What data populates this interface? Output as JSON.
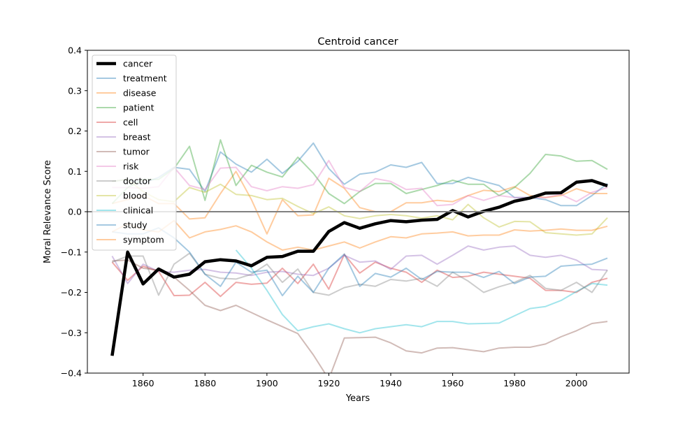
{
  "chart_data": {
    "type": "line",
    "title": "Centroid cancer",
    "xlabel": "Years",
    "ylabel": "Moral Relevance Score",
    "xlim": [
      1842,
      2017
    ],
    "ylim": [
      -0.4,
      0.4
    ],
    "xticks": [
      1860,
      1880,
      1900,
      1920,
      1940,
      1960,
      1980,
      2000
    ],
    "yticks": [
      -0.4,
      -0.3,
      -0.2,
      -0.1,
      0.0,
      0.1,
      0.2,
      0.3,
      0.4
    ],
    "ytick_labels": [
      "−0.4",
      "−0.3",
      "−0.2",
      "−0.1",
      "0.0",
      "0.1",
      "0.2",
      "0.3",
      "0.4"
    ],
    "reference_line": 0.0,
    "legend_position": "upper-left",
    "grid": false,
    "series": [
      {
        "name": "cancer",
        "color": "#000000",
        "emphasis": true,
        "x": [
          1850,
          1855,
          1860,
          1865,
          1870,
          1875,
          1880,
          1885,
          1890,
          1895,
          1900,
          1905,
          1910,
          1915,
          1920,
          1925,
          1930,
          1935,
          1940,
          1945,
          1950,
          1955,
          1960,
          1965,
          1970,
          1975,
          1980,
          1985,
          1990,
          1995,
          2000,
          2005,
          2010
        ],
        "y": [
          -0.357,
          -0.1,
          -0.179,
          -0.142,
          -0.162,
          -0.155,
          -0.124,
          -0.119,
          -0.122,
          -0.134,
          -0.113,
          -0.111,
          -0.098,
          -0.098,
          -0.049,
          -0.027,
          -0.041,
          -0.03,
          -0.022,
          -0.025,
          -0.021,
          -0.019,
          0.003,
          -0.013,
          0.001,
          0.011,
          0.026,
          0.034,
          0.046,
          0.047,
          0.073,
          0.077,
          0.064
        ]
      },
      {
        "name": "treatment",
        "color": "#1f77b4",
        "x": [
          1850,
          1855,
          1860,
          1865,
          1870,
          1875,
          1880,
          1885,
          1890,
          1895,
          1900,
          1905,
          1910,
          1915,
          1920,
          1925,
          1930,
          1935,
          1940,
          1945,
          1950,
          1955,
          1960,
          1965,
          1970,
          1975,
          1980,
          1985,
          1990,
          1995,
          2000,
          2005,
          2010
        ],
        "y": [
          0.075,
          0.08,
          0.07,
          0.085,
          0.11,
          0.105,
          0.05,
          0.148,
          0.118,
          0.098,
          0.13,
          0.095,
          0.125,
          0.17,
          0.107,
          0.068,
          0.093,
          0.098,
          0.116,
          0.11,
          0.122,
          0.07,
          0.07,
          0.085,
          0.075,
          0.065,
          0.035,
          0.035,
          0.03,
          0.015,
          0.015,
          0.04,
          0.07
        ]
      },
      {
        "name": "disease",
        "color": "#ff7f0e",
        "x": [
          1850,
          1855,
          1860,
          1865,
          1870,
          1875,
          1880,
          1885,
          1890,
          1895,
          1900,
          1905,
          1910,
          1915,
          1920,
          1925,
          1930,
          1935,
          1940,
          1945,
          1950,
          1955,
          1960,
          1965,
          1970,
          1975,
          1980,
          1985,
          1990,
          1995,
          2000,
          2005,
          2010
        ],
        "y": [
          0.02,
          0.03,
          0.04,
          0.02,
          0.02,
          -0.018,
          -0.015,
          0.045,
          0.1,
          0.03,
          -0.055,
          0.03,
          -0.01,
          -0.008,
          0.083,
          0.058,
          0.01,
          0.0,
          0.0,
          0.022,
          0.022,
          0.028,
          0.025,
          0.04,
          0.053,
          0.05,
          0.062,
          0.04,
          0.035,
          0.04,
          0.057,
          0.045,
          0.045
        ]
      },
      {
        "name": "patient",
        "color": "#2ca02c",
        "x": [
          1850,
          1855,
          1860,
          1865,
          1870,
          1875,
          1880,
          1885,
          1890,
          1895,
          1900,
          1905,
          1910,
          1915,
          1920,
          1925,
          1930,
          1935,
          1940,
          1945,
          1950,
          1955,
          1960,
          1965,
          1970,
          1975,
          1980,
          1985,
          1990,
          1995,
          2000,
          2005,
          2010
        ],
        "y": [
          0.02,
          0.06,
          0.08,
          0.08,
          0.107,
          0.162,
          0.028,
          0.178,
          0.065,
          0.115,
          0.098,
          0.086,
          0.135,
          0.095,
          0.045,
          0.02,
          0.05,
          0.07,
          0.07,
          0.045,
          0.055,
          0.065,
          0.078,
          0.068,
          0.068,
          0.04,
          0.06,
          0.095,
          0.142,
          0.138,
          0.125,
          0.127,
          0.105
        ]
      },
      {
        "name": "cell",
        "color": "#d62728",
        "x": [
          1850,
          1855,
          1860,
          1865,
          1870,
          1875,
          1880,
          1885,
          1890,
          1895,
          1900,
          1905,
          1910,
          1915,
          1920,
          1925,
          1930,
          1935,
          1940,
          1945,
          1950,
          1955,
          1960,
          1965,
          1970,
          1975,
          1980,
          1985,
          1990,
          1995,
          2000,
          2005,
          2010
        ],
        "y": [
          -0.125,
          -0.17,
          -0.135,
          -0.148,
          -0.208,
          -0.207,
          -0.175,
          -0.21,
          -0.175,
          -0.18,
          -0.177,
          -0.14,
          -0.178,
          -0.13,
          -0.192,
          -0.106,
          -0.152,
          -0.125,
          -0.14,
          -0.15,
          -0.175,
          -0.145,
          -0.163,
          -0.16,
          -0.15,
          -0.155,
          -0.16,
          -0.165,
          -0.195,
          -0.195,
          -0.2,
          -0.175,
          -0.165
        ]
      },
      {
        "name": "breast",
        "color": "#9467bd",
        "x": [
          1850,
          1855,
          1860,
          1865,
          1870,
          1875,
          1880,
          1885,
          1890,
          1895,
          1900,
          1905,
          1910,
          1915,
          1920,
          1925,
          1930,
          1935,
          1940,
          1945,
          1950,
          1955,
          1960,
          1965,
          1970,
          1975,
          1980,
          1985,
          1990,
          1995,
          2000,
          2005,
          2010
        ],
        "y": [
          -0.11,
          -0.178,
          -0.13,
          -0.148,
          -0.15,
          -0.145,
          -0.143,
          -0.15,
          -0.152,
          -0.158,
          -0.15,
          -0.148,
          -0.155,
          -0.158,
          -0.14,
          -0.108,
          -0.125,
          -0.122,
          -0.143,
          -0.11,
          -0.108,
          -0.13,
          -0.108,
          -0.085,
          -0.095,
          -0.088,
          -0.085,
          -0.108,
          -0.113,
          -0.108,
          -0.12,
          -0.143,
          -0.145
        ]
      },
      {
        "name": "tumor",
        "color": "#8c564b",
        "x": [
          1850,
          1855,
          1860,
          1865,
          1870,
          1875,
          1880,
          1885,
          1890,
          1895,
          1900,
          1905,
          1910,
          1915,
          1920,
          1925,
          1930,
          1935,
          1940,
          1945,
          1950,
          1955,
          1960,
          1965,
          1970,
          1975,
          1980,
          1985,
          1990,
          1995,
          2000,
          2005,
          2010
        ],
        "y": [
          -0.122,
          -0.12,
          -0.14,
          -0.145,
          -0.162,
          -0.195,
          -0.232,
          -0.245,
          -0.232,
          -0.25,
          -0.268,
          -0.285,
          -0.302,
          -0.355,
          -0.415,
          -0.313,
          -0.312,
          -0.311,
          -0.325,
          -0.345,
          -0.35,
          -0.338,
          -0.337,
          -0.342,
          -0.347,
          -0.338,
          -0.336,
          -0.336,
          -0.328,
          -0.31,
          -0.295,
          -0.277,
          -0.272
        ]
      },
      {
        "name": "risk",
        "color": "#e377c2",
        "x": [
          1850,
          1855,
          1860,
          1865,
          1870,
          1875,
          1880,
          1885,
          1890,
          1895,
          1900,
          1905,
          1910,
          1915,
          1920,
          1925,
          1930,
          1935,
          1940,
          1945,
          1950,
          1955,
          1960,
          1965,
          1970,
          1975,
          1980,
          1985,
          1990,
          1995,
          2000,
          2005,
          2010
        ],
        "y": [
          0.06,
          0.06,
          0.058,
          0.062,
          0.11,
          0.065,
          0.055,
          0.108,
          0.11,
          0.062,
          0.052,
          0.062,
          0.058,
          0.067,
          0.127,
          0.06,
          0.05,
          0.082,
          0.075,
          0.055,
          0.058,
          0.015,
          0.018,
          0.04,
          0.028,
          0.04,
          0.035,
          0.035,
          0.035,
          0.043,
          0.025,
          0.048,
          0.06
        ]
      },
      {
        "name": "doctor",
        "color": "#7f7f7f",
        "x": [
          1850,
          1855,
          1860,
          1865,
          1870,
          1875,
          1880,
          1885,
          1890,
          1895,
          1900,
          1905,
          1910,
          1915,
          1920,
          1925,
          1930,
          1935,
          1940,
          1945,
          1950,
          1955,
          1960,
          1965,
          1970,
          1975,
          1980,
          1985,
          1990,
          1995,
          2000,
          2005,
          2010
        ],
        "y": [
          -0.125,
          -0.11,
          -0.11,
          -0.207,
          -0.13,
          -0.103,
          -0.155,
          -0.165,
          -0.167,
          -0.155,
          -0.13,
          -0.175,
          -0.142,
          -0.2,
          -0.207,
          -0.188,
          -0.18,
          -0.185,
          -0.168,
          -0.172,
          -0.165,
          -0.185,
          -0.15,
          -0.172,
          -0.2,
          -0.186,
          -0.175,
          -0.158,
          -0.19,
          -0.195,
          -0.175,
          -0.2,
          -0.145
        ]
      },
      {
        "name": "blood",
        "color": "#bcbd22",
        "x": [
          1850,
          1855,
          1860,
          1865,
          1870,
          1875,
          1880,
          1885,
          1890,
          1895,
          1900,
          1905,
          1910,
          1915,
          1920,
          1925,
          1930,
          1935,
          1940,
          1945,
          1950,
          1955,
          1960,
          1965,
          1970,
          1975,
          1980,
          1985,
          1990,
          1995,
          2000,
          2005,
          2010
        ],
        "y": [
          0.075,
          0.08,
          0.05,
          0.03,
          0.025,
          0.06,
          0.048,
          0.068,
          0.043,
          0.04,
          0.03,
          0.033,
          0.013,
          -0.005,
          0.012,
          -0.01,
          -0.017,
          -0.01,
          -0.007,
          -0.01,
          -0.016,
          -0.01,
          -0.02,
          0.018,
          -0.015,
          -0.038,
          -0.024,
          -0.025,
          -0.052,
          -0.055,
          -0.058,
          -0.055,
          -0.015
        ]
      },
      {
        "name": "clinical",
        "color": "#17becf",
        "x": [
          1890,
          1895,
          1900,
          1905,
          1910,
          1915,
          1920,
          1925,
          1930,
          1935,
          1940,
          1945,
          1950,
          1955,
          1960,
          1965,
          1970,
          1975,
          1980,
          1985,
          1990,
          1995,
          2000,
          2005,
          2010
        ],
        "y": [
          -0.095,
          -0.14,
          -0.195,
          -0.255,
          -0.295,
          -0.285,
          -0.278,
          -0.29,
          -0.3,
          -0.29,
          -0.285,
          -0.28,
          -0.285,
          -0.272,
          -0.272,
          -0.278,
          -0.277,
          -0.276,
          -0.258,
          -0.24,
          -0.235,
          -0.22,
          -0.198,
          -0.178,
          -0.182
        ]
      },
      {
        "name": "study",
        "color": "#1f77b4",
        "x": [
          1850,
          1855,
          1860,
          1865,
          1870,
          1875,
          1880,
          1885,
          1890,
          1895,
          1900,
          1905,
          1910,
          1915,
          1920,
          1925,
          1930,
          1935,
          1940,
          1945,
          1950,
          1955,
          1960,
          1965,
          1970,
          1975,
          1980,
          1985,
          1990,
          1995,
          2000,
          2005,
          2010
        ],
        "y": [
          -0.05,
          -0.055,
          -0.055,
          -0.04,
          -0.065,
          -0.1,
          -0.155,
          -0.185,
          -0.125,
          -0.15,
          -0.145,
          -0.208,
          -0.16,
          -0.2,
          -0.14,
          -0.105,
          -0.185,
          -0.153,
          -0.162,
          -0.14,
          -0.168,
          -0.148,
          -0.15,
          -0.15,
          -0.163,
          -0.148,
          -0.178,
          -0.162,
          -0.16,
          -0.135,
          -0.132,
          -0.13,
          -0.115
        ]
      },
      {
        "name": "symptom",
        "color": "#ff7f0e",
        "x": [
          1850,
          1855,
          1860,
          1865,
          1870,
          1875,
          1880,
          1885,
          1890,
          1895,
          1900,
          1905,
          1910,
          1915,
          1920,
          1925,
          1930,
          1935,
          1940,
          1945,
          1950,
          1955,
          1960,
          1965,
          1970,
          1975,
          1980,
          1985,
          1990,
          1995,
          2000,
          2005,
          2010
        ],
        "y": [
          -0.05,
          -0.03,
          -0.045,
          -0.05,
          -0.022,
          -0.065,
          -0.05,
          -0.044,
          -0.035,
          -0.05,
          -0.075,
          -0.095,
          -0.088,
          -0.095,
          -0.085,
          -0.075,
          -0.09,
          -0.075,
          -0.062,
          -0.065,
          -0.055,
          -0.053,
          -0.05,
          -0.06,
          -0.058,
          -0.058,
          -0.045,
          -0.048,
          -0.046,
          -0.043,
          -0.046,
          -0.046,
          -0.036
        ]
      }
    ]
  }
}
